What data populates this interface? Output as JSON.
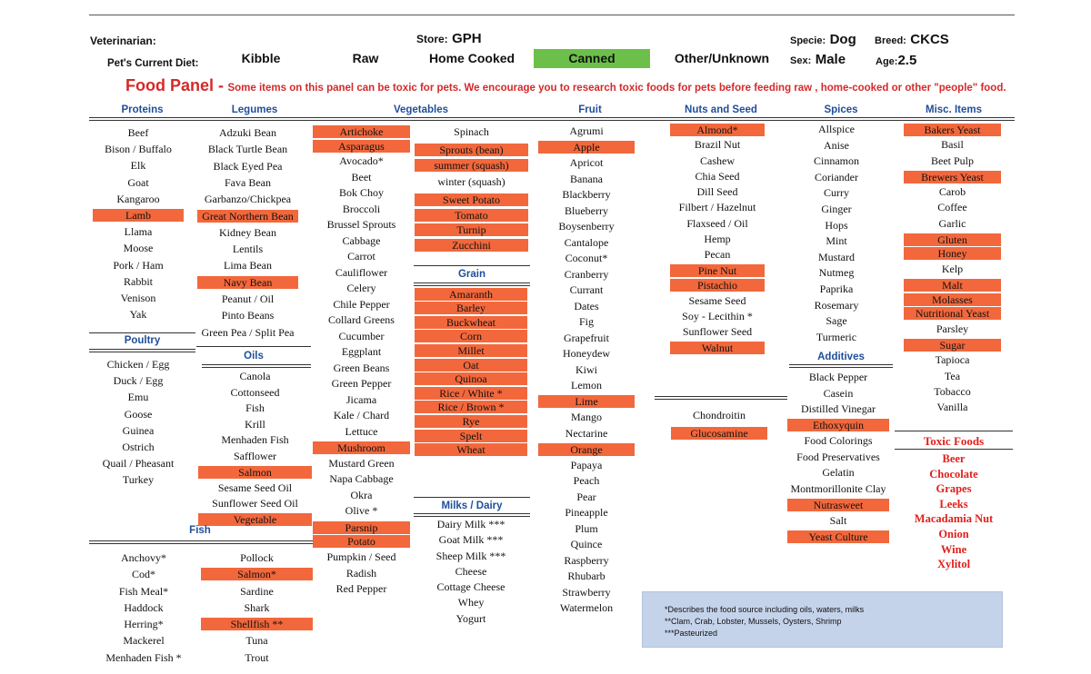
{
  "header": {
    "veterinarian_label": "Veterinarian:",
    "store_label": "Store:",
    "store_value": "GPH",
    "specie_label": "Specie:",
    "specie_value": "Dog",
    "breed_label": "Breed:",
    "breed_value": "CKCS",
    "diet_label": "Pet's Current Diet:",
    "diet_options": [
      "Kibble",
      "Raw",
      "Home Cooked",
      "Canned",
      "Other/Unknown"
    ],
    "diet_selected": "Canned",
    "sex_label": "Sex:",
    "sex_value": "Male",
    "age_label": "Age:",
    "age_value": "2.5",
    "selected_color": "#6cc04a"
  },
  "panel": {
    "title": "Food Panel -",
    "warning": "Some items on this panel can be toxic for pets.  We encourage you to research toxic foods for pets before feeding raw , home-cooked or other \"people\" food.",
    "title_color": "#d42a2a",
    "highlight_color": "#f2683c",
    "heading_color": "#1f4e9a"
  },
  "sections": {
    "proteins": {
      "title": "Proteins",
      "items": [
        {
          "label": "Beef",
          "hl": false
        },
        {
          "label": "Bison / Buffalo",
          "hl": false
        },
        {
          "label": "Elk",
          "hl": false
        },
        {
          "label": "Goat",
          "hl": false
        },
        {
          "label": "Kangaroo",
          "hl": false
        },
        {
          "label": "Lamb",
          "hl": true
        },
        {
          "label": "Llama",
          "hl": false
        },
        {
          "label": "Moose",
          "hl": false
        },
        {
          "label": "Pork / Ham",
          "hl": false
        },
        {
          "label": "Rabbit",
          "hl": false
        },
        {
          "label": "Venison",
          "hl": false
        },
        {
          "label": "Yak",
          "hl": false
        }
      ]
    },
    "poultry": {
      "title": "Poultry",
      "items": [
        {
          "label": "Chicken / Egg",
          "hl": false
        },
        {
          "label": "Duck / Egg",
          "hl": false
        },
        {
          "label": "Emu",
          "hl": false
        },
        {
          "label": "Goose",
          "hl": false
        },
        {
          "label": "Guinea",
          "hl": false
        },
        {
          "label": "Ostrich",
          "hl": false
        },
        {
          "label": "Quail / Pheasant",
          "hl": false
        },
        {
          "label": "Turkey",
          "hl": false
        }
      ]
    },
    "legumes": {
      "title": "Legumes",
      "items": [
        {
          "label": "Adzuki Bean",
          "hl": false
        },
        {
          "label": "Black Turtle Bean",
          "hl": false
        },
        {
          "label": "Black Eyed Pea",
          "hl": false
        },
        {
          "label": "Fava Bean",
          "hl": false
        },
        {
          "label": "Garbanzo/Chickpea",
          "hl": false
        },
        {
          "label": "Great Northern Bean",
          "hl": true
        },
        {
          "label": "Kidney Bean",
          "hl": false
        },
        {
          "label": "Lentils",
          "hl": false
        },
        {
          "label": "Lima Bean",
          "hl": false
        },
        {
          "label": "Navy Bean",
          "hl": true
        },
        {
          "label": "Peanut / Oil",
          "hl": false
        },
        {
          "label": "Pinto Beans",
          "hl": false
        },
        {
          "label": "Green Pea / Split Pea",
          "hl": false
        }
      ]
    },
    "oils": {
      "title": "Oils",
      "items": [
        {
          "label": "Canola",
          "hl": false
        },
        {
          "label": "Cottonseed",
          "hl": false
        },
        {
          "label": "Fish",
          "hl": false
        },
        {
          "label": "Krill",
          "hl": false
        },
        {
          "label": "Menhaden Fish",
          "hl": false
        },
        {
          "label": "Safflower",
          "hl": false
        },
        {
          "label": "Salmon",
          "hl": true
        },
        {
          "label": "Sesame Seed Oil",
          "hl": false
        },
        {
          "label": "Sunflower Seed Oil",
          "hl": false
        },
        {
          "label": "Vegetable",
          "hl": true
        }
      ]
    },
    "fish": {
      "title": "Fish",
      "left": [
        {
          "label": "Anchovy*",
          "hl": false
        },
        {
          "label": "Cod*",
          "hl": false
        },
        {
          "label": "Fish Meal*",
          "hl": false
        },
        {
          "label": "Haddock",
          "hl": false
        },
        {
          "label": "Herring*",
          "hl": false
        },
        {
          "label": "Mackerel",
          "hl": false
        },
        {
          "label": "Menhaden Fish *",
          "hl": false
        }
      ],
      "right": [
        {
          "label": "Pollock",
          "hl": false
        },
        {
          "label": "Salmon*",
          "hl": true
        },
        {
          "label": "Sardine",
          "hl": false
        },
        {
          "label": "Shark",
          "hl": false
        },
        {
          "label": "Shellfish **",
          "hl": true
        },
        {
          "label": "Tuna",
          "hl": false
        },
        {
          "label": "Trout",
          "hl": false
        }
      ]
    },
    "vegetables": {
      "title": "Vegetables",
      "left": [
        {
          "label": "Artichoke",
          "hl": true
        },
        {
          "label": "Asparagus",
          "hl": true
        },
        {
          "label": "Avocado*",
          "hl": false
        },
        {
          "label": "Beet",
          "hl": false
        },
        {
          "label": "Bok Choy",
          "hl": false
        },
        {
          "label": "Broccoli",
          "hl": false
        },
        {
          "label": "Brussel Sprouts",
          "hl": false
        },
        {
          "label": "Cabbage",
          "hl": false
        },
        {
          "label": "Carrot",
          "hl": false
        },
        {
          "label": "Cauliflower",
          "hl": false
        },
        {
          "label": "Celery",
          "hl": false
        },
        {
          "label": "Chile Pepper",
          "hl": false
        },
        {
          "label": "Collard Greens",
          "hl": false
        },
        {
          "label": "Cucumber",
          "hl": false
        },
        {
          "label": "Eggplant",
          "hl": false
        },
        {
          "label": "Green Beans",
          "hl": false
        },
        {
          "label": "Green Pepper",
          "hl": false
        },
        {
          "label": "Jicama",
          "hl": false
        },
        {
          "label": "Kale / Chard",
          "hl": false
        },
        {
          "label": "Lettuce",
          "hl": false
        },
        {
          "label": "Mushroom",
          "hl": true
        },
        {
          "label": "Mustard Green",
          "hl": false
        },
        {
          "label": "Napa Cabbage",
          "hl": false
        },
        {
          "label": "Okra",
          "hl": false
        },
        {
          "label": "Olive *",
          "hl": false
        },
        {
          "label": "Parsnip",
          "hl": true
        },
        {
          "label": "Potato",
          "hl": true
        },
        {
          "label": "Pumpkin / Seed",
          "hl": false
        },
        {
          "label": "Radish",
          "hl": false
        },
        {
          "label": "Red Pepper",
          "hl": false
        }
      ],
      "right": [
        {
          "label": "Spinach",
          "hl": false
        },
        {
          "label": "Sprouts (bean)",
          "hl": true
        },
        {
          "label": "summer (squash)",
          "hl": true
        },
        {
          "label": "winter (squash)",
          "hl": false
        },
        {
          "label": "Sweet Potato",
          "hl": true
        },
        {
          "label": "Tomato",
          "hl": true
        },
        {
          "label": "Turnip",
          "hl": true
        },
        {
          "label": "Zucchini",
          "hl": true
        }
      ]
    },
    "grain": {
      "title": "Grain",
      "items": [
        {
          "label": "Amaranth",
          "hl": true
        },
        {
          "label": "Barley",
          "hl": true
        },
        {
          "label": "Buckwheat",
          "hl": true
        },
        {
          "label": "Corn",
          "hl": true
        },
        {
          "label": "Millet",
          "hl": true
        },
        {
          "label": "Oat",
          "hl": true
        },
        {
          "label": "Quinoa",
          "hl": true
        },
        {
          "label": "Rice / White *",
          "hl": true
        },
        {
          "label": "Rice / Brown *",
          "hl": true
        },
        {
          "label": "Rye",
          "hl": true
        },
        {
          "label": "Spelt",
          "hl": true
        },
        {
          "label": "Wheat",
          "hl": true
        }
      ]
    },
    "milks": {
      "title": "Milks / Dairy",
      "items": [
        {
          "label": "Dairy Milk ***",
          "hl": false
        },
        {
          "label": "Goat Milk ***",
          "hl": false
        },
        {
          "label": "Sheep Milk ***",
          "hl": false
        },
        {
          "label": "Cheese",
          "hl": false
        },
        {
          "label": "Cottage Cheese",
          "hl": false
        },
        {
          "label": "Whey",
          "hl": false
        },
        {
          "label": "Yogurt",
          "hl": false
        }
      ]
    },
    "fruit": {
      "title": "Fruit",
      "items": [
        {
          "label": "Agrumi",
          "hl": false
        },
        {
          "label": "Apple",
          "hl": true
        },
        {
          "label": "Apricot",
          "hl": false
        },
        {
          "label": "Banana",
          "hl": false
        },
        {
          "label": "Blackberry",
          "hl": false
        },
        {
          "label": "Blueberry",
          "hl": false
        },
        {
          "label": "Boysenberry",
          "hl": false
        },
        {
          "label": "Cantalope",
          "hl": false
        },
        {
          "label": "Coconut*",
          "hl": false
        },
        {
          "label": "Cranberry",
          "hl": false
        },
        {
          "label": "Currant",
          "hl": false
        },
        {
          "label": "Dates",
          "hl": false
        },
        {
          "label": "Fig",
          "hl": false
        },
        {
          "label": "Grapefruit",
          "hl": false
        },
        {
          "label": "Honeydew",
          "hl": false
        },
        {
          "label": "Kiwi",
          "hl": false
        },
        {
          "label": "Lemon",
          "hl": false
        },
        {
          "label": "Lime",
          "hl": true
        },
        {
          "label": "Mango",
          "hl": false
        },
        {
          "label": "Nectarine",
          "hl": false
        },
        {
          "label": "Orange",
          "hl": true
        },
        {
          "label": "Papaya",
          "hl": false
        },
        {
          "label": "Peach",
          "hl": false
        },
        {
          "label": "Pear",
          "hl": false
        },
        {
          "label": "Pineapple",
          "hl": false
        },
        {
          "label": "Plum",
          "hl": false
        },
        {
          "label": "Quince",
          "hl": false
        },
        {
          "label": "Raspberry",
          "hl": false
        },
        {
          "label": "Rhubarb",
          "hl": false
        },
        {
          "label": "Strawberry",
          "hl": false
        },
        {
          "label": "Watermelon",
          "hl": false
        }
      ]
    },
    "nuts": {
      "title": "Nuts and Seed",
      "items": [
        {
          "label": "Almond*",
          "hl": true
        },
        {
          "label": "Brazil Nut",
          "hl": false
        },
        {
          "label": "Cashew",
          "hl": false
        },
        {
          "label": "Chia Seed",
          "hl": false
        },
        {
          "label": "Dill Seed",
          "hl": false
        },
        {
          "label": "Filbert / Hazelnut",
          "hl": false
        },
        {
          "label": "Flaxseed / Oil",
          "hl": false
        },
        {
          "label": "Hemp",
          "hl": false
        },
        {
          "label": "Pecan",
          "hl": false
        },
        {
          "label": "Pine Nut",
          "hl": true
        },
        {
          "label": "Pistachio",
          "hl": true
        },
        {
          "label": "Sesame Seed",
          "hl": false
        },
        {
          "label": "Soy - Lecithin *",
          "hl": false
        },
        {
          "label": "Sunflower Seed",
          "hl": false
        },
        {
          "label": "Walnut",
          "hl": true
        }
      ]
    },
    "other": {
      "items": [
        {
          "label": "Chondroitin",
          "hl": false
        },
        {
          "label": "Glucosamine",
          "hl": true
        }
      ]
    },
    "spices": {
      "title": "Spices",
      "items": [
        {
          "label": "Allspice",
          "hl": false
        },
        {
          "label": "Anise",
          "hl": false
        },
        {
          "label": "Cinnamon",
          "hl": false
        },
        {
          "label": "Coriander",
          "hl": false
        },
        {
          "label": "Curry",
          "hl": false
        },
        {
          "label": "Ginger",
          "hl": false
        },
        {
          "label": "Hops",
          "hl": false
        },
        {
          "label": "Mint",
          "hl": false
        },
        {
          "label": "Mustard",
          "hl": false
        },
        {
          "label": "Nutmeg",
          "hl": false
        },
        {
          "label": "Paprika",
          "hl": false
        },
        {
          "label": "Rosemary",
          "hl": false
        },
        {
          "label": "Sage",
          "hl": false
        },
        {
          "label": "Turmeric",
          "hl": false
        }
      ]
    },
    "additives": {
      "title": "Additives",
      "items": [
        {
          "label": "Black Pepper",
          "hl": false
        },
        {
          "label": "Casein",
          "hl": false
        },
        {
          "label": "Distilled Vinegar",
          "hl": false
        },
        {
          "label": "Ethoxyquin",
          "hl": true
        },
        {
          "label": "Food Colorings",
          "hl": false
        },
        {
          "label": "Food Preservatives",
          "hl": false
        },
        {
          "label": "Gelatin",
          "hl": false
        },
        {
          "label": "Montmorillonite Clay",
          "hl": false
        },
        {
          "label": "Nutrasweet",
          "hl": true
        },
        {
          "label": "Salt",
          "hl": false
        },
        {
          "label": "Yeast Culture",
          "hl": true
        }
      ]
    },
    "misc": {
      "title": "Misc. Items",
      "items": [
        {
          "label": "Bakers Yeast",
          "hl": true
        },
        {
          "label": "Basil",
          "hl": false
        },
        {
          "label": "Beet Pulp",
          "hl": false
        },
        {
          "label": "Brewers Yeast",
          "hl": true
        },
        {
          "label": "Carob",
          "hl": false
        },
        {
          "label": "Coffee",
          "hl": false
        },
        {
          "label": "Garlic",
          "hl": false
        },
        {
          "label": "Gluten",
          "hl": true
        },
        {
          "label": "Honey",
          "hl": true
        },
        {
          "label": "Kelp",
          "hl": false
        },
        {
          "label": "Malt",
          "hl": true
        },
        {
          "label": "Molasses",
          "hl": true
        },
        {
          "label": "Nutritional Yeast",
          "hl": true
        },
        {
          "label": "Parsley",
          "hl": false
        },
        {
          "label": "Sugar",
          "hl": true
        },
        {
          "label": "Tapioca",
          "hl": false
        },
        {
          "label": "Tea",
          "hl": false
        },
        {
          "label": "Tobacco",
          "hl": false
        },
        {
          "label": "Vanilla",
          "hl": false
        }
      ]
    },
    "toxic": {
      "title": "Toxic Foods",
      "items": [
        "Beer",
        "Chocolate",
        "Grapes",
        "Leeks",
        "Macadamia Nut",
        "Onion",
        "Wine",
        "Xylitol"
      ]
    }
  },
  "notes": [
    "*Describes the food source  including oils, waters, milks",
    "**Clam, Crab, Lobster, Mussels, Oysters, Shrimp",
    "***Pasteurized"
  ]
}
